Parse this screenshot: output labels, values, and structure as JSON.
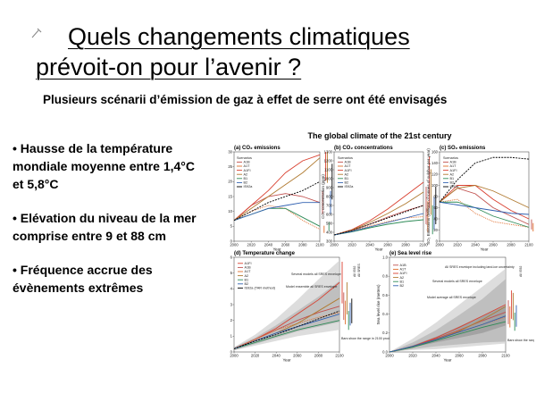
{
  "slide": {
    "title_line1": "Quels changements climatiques",
    "title_line2": "prévoit-on pour l’avenir ?",
    "subtitle": "Plusieurs scénarii d’émission de gaz à effet de serre ont été envisagés",
    "bullets": [
      "• Hausse de la température mondiale moyenne entre 1,4°C et 5,8°C",
      "• Elévation du niveau de la mer comprise entre 9 et 88 cm",
      "• Fréquence accrue des évènements extrêmes"
    ]
  },
  "figure": {
    "title": "The global climate of the 21st century",
    "panels": {
      "a": {
        "title": "(a) CO₂ emissions",
        "ylabel": "CO₂ emissions (Gt C/yr)",
        "xlabel": "Year",
        "yticks": [
          "0",
          "5",
          "10",
          "15",
          "20",
          "25",
          "30"
        ],
        "xticks": [
          "2000",
          "2020",
          "2040",
          "2060",
          "2080",
          "2100"
        ]
      },
      "b": {
        "title": "(b) CO₂ concentrations",
        "ylabel": "CO₂ concentration (ppm)",
        "xlabel": "Year",
        "yticks": [
          "300",
          "400",
          "500",
          "600",
          "700",
          "800",
          "900",
          "1000",
          "1100",
          "1200",
          "1300"
        ],
        "xticks": [
          "2000",
          "2020",
          "2040",
          "2060",
          "2080",
          "2100"
        ]
      },
      "c": {
        "title": "(c) SO₂ emissions",
        "ylabel": "SO₂ Emissions (Millions of tonnes of sulphur per year)",
        "xlabel": "Year",
        "yticks": [
          "0",
          "20",
          "40",
          "60",
          "80",
          "100",
          "120",
          "140",
          "160"
        ],
        "xticks": [
          "2000",
          "2020",
          "2040",
          "2060",
          "2080",
          "2100"
        ]
      },
      "d": {
        "title": "(d) Temperature change",
        "ylabel": "Temperature change (°C)",
        "xlabel": "Year",
        "yticks": [
          "0",
          "1",
          "2",
          "3",
          "4",
          "5",
          "6"
        ],
        "xticks": [
          "2000",
          "2020",
          "2040",
          "2060",
          "2080",
          "2100"
        ],
        "notes": [
          "Several models all SRES envelope",
          "Model ensemble all SRES envelope",
          "Bars show the range in 2100 produced by several models"
        ],
        "bar_labels": [
          "All IS92",
          "All SRES"
        ]
      },
      "e": {
        "title": "(e) Sea level rise",
        "ylabel": "Sea level rise (metres)",
        "xlabel": "Year",
        "yticks": [
          "0.0",
          "0.2",
          "0.4",
          "0.6",
          "0.8",
          "1.0"
        ],
        "xticks": [
          "2000",
          "2020",
          "2040",
          "2060",
          "2080",
          "2100"
        ],
        "notes": [
          "All SRES envelope including land-ice uncertainty",
          "Several models all SRES envelope",
          "Model average all SRES envelope",
          "Bars show the range in 2100 produced by several models"
        ],
        "bar_labels": [
          "All IS92"
        ]
      }
    },
    "legend": {
      "abc": [
        "Scenarios",
        "A1B",
        "A1T",
        "A1FI",
        "A2",
        "B1",
        "B2",
        "IS92a"
      ],
      "d": [
        "A1FI",
        "A1B",
        "A1T",
        "A2",
        "B1",
        "B2",
        "IS92a (TAR method)"
      ],
      "e": [
        "A1B",
        "A1T",
        "A1FI",
        "A2",
        "B1",
        "B2"
      ]
    },
    "colors": {
      "A1B": "#c0504d",
      "A1T": "#e06c2a",
      "A1FI": "#d94030",
      "A2": "#b07a30",
      "B1": "#2e8b57",
      "B2": "#3060b0",
      "IS92a": "#000000",
      "envelope": "#c8c8c8"
    }
  },
  "chart_data": [
    {
      "type": "line",
      "title": "(a) CO₂ emissions",
      "xlabel": "Year",
      "ylabel": "CO₂ emissions (Gt C/yr)",
      "ylim": [
        0,
        30
      ],
      "x": [
        2000,
        2020,
        2040,
        2060,
        2080,
        2100
      ],
      "series": [
        {
          "name": "A1B",
          "values": [
            7,
            12,
            15,
            16,
            15,
            13
          ]
        },
        {
          "name": "A1T",
          "values": [
            7,
            10,
            12,
            11,
            7,
            4
          ]
        },
        {
          "name": "A1FI",
          "values": [
            7,
            12,
            17,
            23,
            27,
            29
          ]
        },
        {
          "name": "A2",
          "values": [
            7,
            11,
            15,
            19,
            23,
            28
          ]
        },
        {
          "name": "B1",
          "values": [
            7,
            9,
            11,
            11,
            8,
            5
          ]
        },
        {
          "name": "B2",
          "values": [
            7,
            9,
            11,
            12,
            13,
            13
          ]
        },
        {
          "name": "IS92a",
          "values": [
            7,
            10,
            13,
            15,
            17,
            20
          ]
        }
      ]
    },
    {
      "type": "line",
      "title": "(b) CO₂ concentrations",
      "xlabel": "Year",
      "ylabel": "CO₂ concentration (ppm)",
      "ylim": [
        300,
        1300
      ],
      "x": [
        2000,
        2020,
        2040,
        2060,
        2080,
        2100
      ],
      "series": [
        {
          "name": "A1B",
          "values": [
            370,
            420,
            490,
            570,
            640,
            700
          ]
        },
        {
          "name": "A1T",
          "values": [
            370,
            415,
            470,
            520,
            560,
            575
          ]
        },
        {
          "name": "A1FI",
          "values": [
            370,
            430,
            530,
            660,
            810,
            960
          ]
        },
        {
          "name": "A2",
          "values": [
            370,
            425,
            510,
            610,
            720,
            850
          ]
        },
        {
          "name": "B1",
          "values": [
            370,
            405,
            450,
            490,
            520,
            540
          ]
        },
        {
          "name": "B2",
          "values": [
            370,
            410,
            460,
            510,
            560,
            610
          ]
        },
        {
          "name": "IS92a",
          "values": [
            370,
            420,
            490,
            560,
            630,
            700
          ]
        }
      ]
    },
    {
      "type": "line",
      "title": "(c) SO₂ emissions",
      "xlabel": "Year",
      "ylabel": "SO₂ Emissions (Millions of tonnes of sulphur per year)",
      "ylim": [
        0,
        160
      ],
      "x": [
        2000,
        2020,
        2040,
        2060,
        2080,
        2100
      ],
      "series": [
        {
          "name": "A1B",
          "values": [
            70,
            95,
            85,
            60,
            45,
            30
          ]
        },
        {
          "name": "A1T",
          "values": [
            70,
            75,
            50,
            35,
            30,
            25
          ]
        },
        {
          "name": "A1FI",
          "values": [
            70,
            100,
            100,
            75,
            55,
            40
          ]
        },
        {
          "name": "A2",
          "values": [
            70,
            95,
            100,
            90,
            75,
            60
          ]
        },
        {
          "name": "B1",
          "values": [
            70,
            70,
            60,
            45,
            35,
            25
          ]
        },
        {
          "name": "B2",
          "values": [
            70,
            65,
            60,
            55,
            50,
            48
          ]
        },
        {
          "name": "IS92a",
          "values": [
            70,
            110,
            140,
            150,
            150,
            147
          ]
        }
      ]
    },
    {
      "type": "line",
      "title": "(d) Temperature change",
      "xlabel": "Year",
      "ylabel": "Temperature change (°C)",
      "ylim": [
        0,
        6
      ],
      "x": [
        2000,
        2020,
        2040,
        2060,
        2080,
        2100
      ],
      "series": [
        {
          "name": "A1FI",
          "values": [
            0.2,
            0.8,
            1.5,
            2.4,
            3.3,
            4.4
          ]
        },
        {
          "name": "A1B",
          "values": [
            0.2,
            0.8,
            1.4,
            2.0,
            2.5,
            2.9
          ]
        },
        {
          "name": "A1T",
          "values": [
            0.2,
            0.8,
            1.4,
            1.8,
            2.2,
            2.5
          ]
        },
        {
          "name": "A2",
          "values": [
            0.2,
            0.7,
            1.2,
            1.8,
            2.6,
            3.4
          ]
        },
        {
          "name": "B1",
          "values": [
            0.2,
            0.6,
            1.0,
            1.4,
            1.7,
            2.0
          ]
        },
        {
          "name": "B2",
          "values": [
            0.2,
            0.7,
            1.2,
            1.6,
            2.0,
            2.4
          ]
        },
        {
          "name": "IS92a (TAR method)",
          "values": [
            0.2,
            0.7,
            1.1,
            1.6,
            2.1,
            2.6
          ]
        }
      ],
      "envelopes": [
        {
          "name": "Several models all SRES envelope",
          "lower": [
            0.1,
            0.4,
            0.7,
            1.0,
            1.2,
            1.4
          ],
          "upper": [
            0.3,
            1.1,
            2.1,
            3.3,
            4.6,
            5.8
          ]
        },
        {
          "name": "Model ensemble all SRES envelope",
          "lower": [
            0.1,
            0.5,
            0.9,
            1.3,
            1.6,
            1.9
          ],
          "upper": [
            0.3,
            0.9,
            1.7,
            2.6,
            3.5,
            4.5
          ]
        }
      ]
    },
    {
      "type": "line",
      "title": "(e) Sea level rise",
      "xlabel": "Year",
      "ylabel": "Sea level rise (metres)",
      "ylim": [
        0,
        1.0
      ],
      "x": [
        2000,
        2020,
        2040,
        2060,
        2080,
        2100
      ],
      "series": [
        {
          "name": "A1B",
          "values": [
            0.0,
            0.06,
            0.14,
            0.23,
            0.33,
            0.42
          ]
        },
        {
          "name": "A1T",
          "values": [
            0.0,
            0.06,
            0.13,
            0.21,
            0.29,
            0.37
          ]
        },
        {
          "name": "A1FI",
          "values": [
            0.0,
            0.06,
            0.15,
            0.26,
            0.38,
            0.5
          ]
        },
        {
          "name": "A2",
          "values": [
            0.0,
            0.05,
            0.13,
            0.22,
            0.34,
            0.48
          ]
        },
        {
          "name": "B1",
          "values": [
            0.0,
            0.05,
            0.12,
            0.19,
            0.26,
            0.32
          ]
        },
        {
          "name": "B2",
          "values": [
            0.0,
            0.06,
            0.13,
            0.21,
            0.29,
            0.38
          ]
        }
      ],
      "envelopes": [
        {
          "name": "All SRES envelope including land-ice uncertainty",
          "lower": [
            0.0,
            0.02,
            0.03,
            0.05,
            0.07,
            0.09
          ],
          "upper": [
            0.0,
            0.14,
            0.31,
            0.5,
            0.69,
            0.88
          ]
        },
        {
          "name": "Several models all SRES envelope",
          "lower": [
            0.0,
            0.03,
            0.06,
            0.08,
            0.1,
            0.11
          ],
          "upper": [
            0.0,
            0.1,
            0.23,
            0.39,
            0.56,
            0.77
          ]
        },
        {
          "name": "Model average all SRES envelope",
          "lower": [
            0.0,
            0.05,
            0.1,
            0.15,
            0.2,
            0.28
          ],
          "upper": [
            0.0,
            0.07,
            0.16,
            0.27,
            0.38,
            0.49
          ]
        }
      ]
    }
  ]
}
